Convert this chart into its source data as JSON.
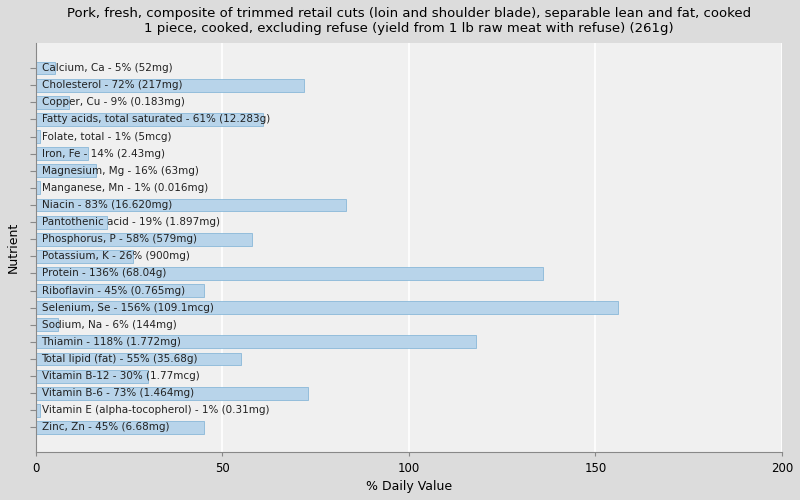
{
  "title": "Pork, fresh, composite of trimmed retail cuts (loin and shoulder blade), separable lean and fat, cooked\n1 piece, cooked, excluding refuse (yield from 1 lb raw meat with refuse) (261g)",
  "xlabel": "% Daily Value",
  "ylabel": "Nutrient",
  "xlim": [
    0,
    200
  ],
  "xticks": [
    0,
    50,
    100,
    150,
    200
  ],
  "background_color": "#dcdcdc",
  "plot_background_color": "#f0f0f0",
  "bar_color": "#b8d4ea",
  "bar_edge_color": "#7aafd4",
  "nutrients": [
    {
      "label": "Calcium, Ca - 5% (52mg)",
      "value": 5
    },
    {
      "label": "Cholesterol - 72% (217mg)",
      "value": 72
    },
    {
      "label": "Copper, Cu - 9% (0.183mg)",
      "value": 9
    },
    {
      "label": "Fatty acids, total saturated - 61% (12.283g)",
      "value": 61
    },
    {
      "label": "Folate, total - 1% (5mcg)",
      "value": 1
    },
    {
      "label": "Iron, Fe - 14% (2.43mg)",
      "value": 14
    },
    {
      "label": "Magnesium, Mg - 16% (63mg)",
      "value": 16
    },
    {
      "label": "Manganese, Mn - 1% (0.016mg)",
      "value": 1
    },
    {
      "label": "Niacin - 83% (16.620mg)",
      "value": 83
    },
    {
      "label": "Pantothenic acid - 19% (1.897mg)",
      "value": 19
    },
    {
      "label": "Phosphorus, P - 58% (579mg)",
      "value": 58
    },
    {
      "label": "Potassium, K - 26% (900mg)",
      "value": 26
    },
    {
      "label": "Protein - 136% (68.04g)",
      "value": 136
    },
    {
      "label": "Riboflavin - 45% (0.765mg)",
      "value": 45
    },
    {
      "label": "Selenium, Se - 156% (109.1mcg)",
      "value": 156
    },
    {
      "label": "Sodium, Na - 6% (144mg)",
      "value": 6
    },
    {
      "label": "Thiamin - 118% (1.772mg)",
      "value": 118
    },
    {
      "label": "Total lipid (fat) - 55% (35.68g)",
      "value": 55
    },
    {
      "label": "Vitamin B-12 - 30% (1.77mcg)",
      "value": 30
    },
    {
      "label": "Vitamin B-6 - 73% (1.464mg)",
      "value": 73
    },
    {
      "label": "Vitamin E (alpha-tocopherol) - 1% (0.31mg)",
      "value": 1
    },
    {
      "label": "Zinc, Zn - 45% (6.68mg)",
      "value": 45
    }
  ],
  "title_fontsize": 9.5,
  "label_fontsize": 7.5,
  "axis_label_fontsize": 9,
  "tick_fontsize": 8.5
}
